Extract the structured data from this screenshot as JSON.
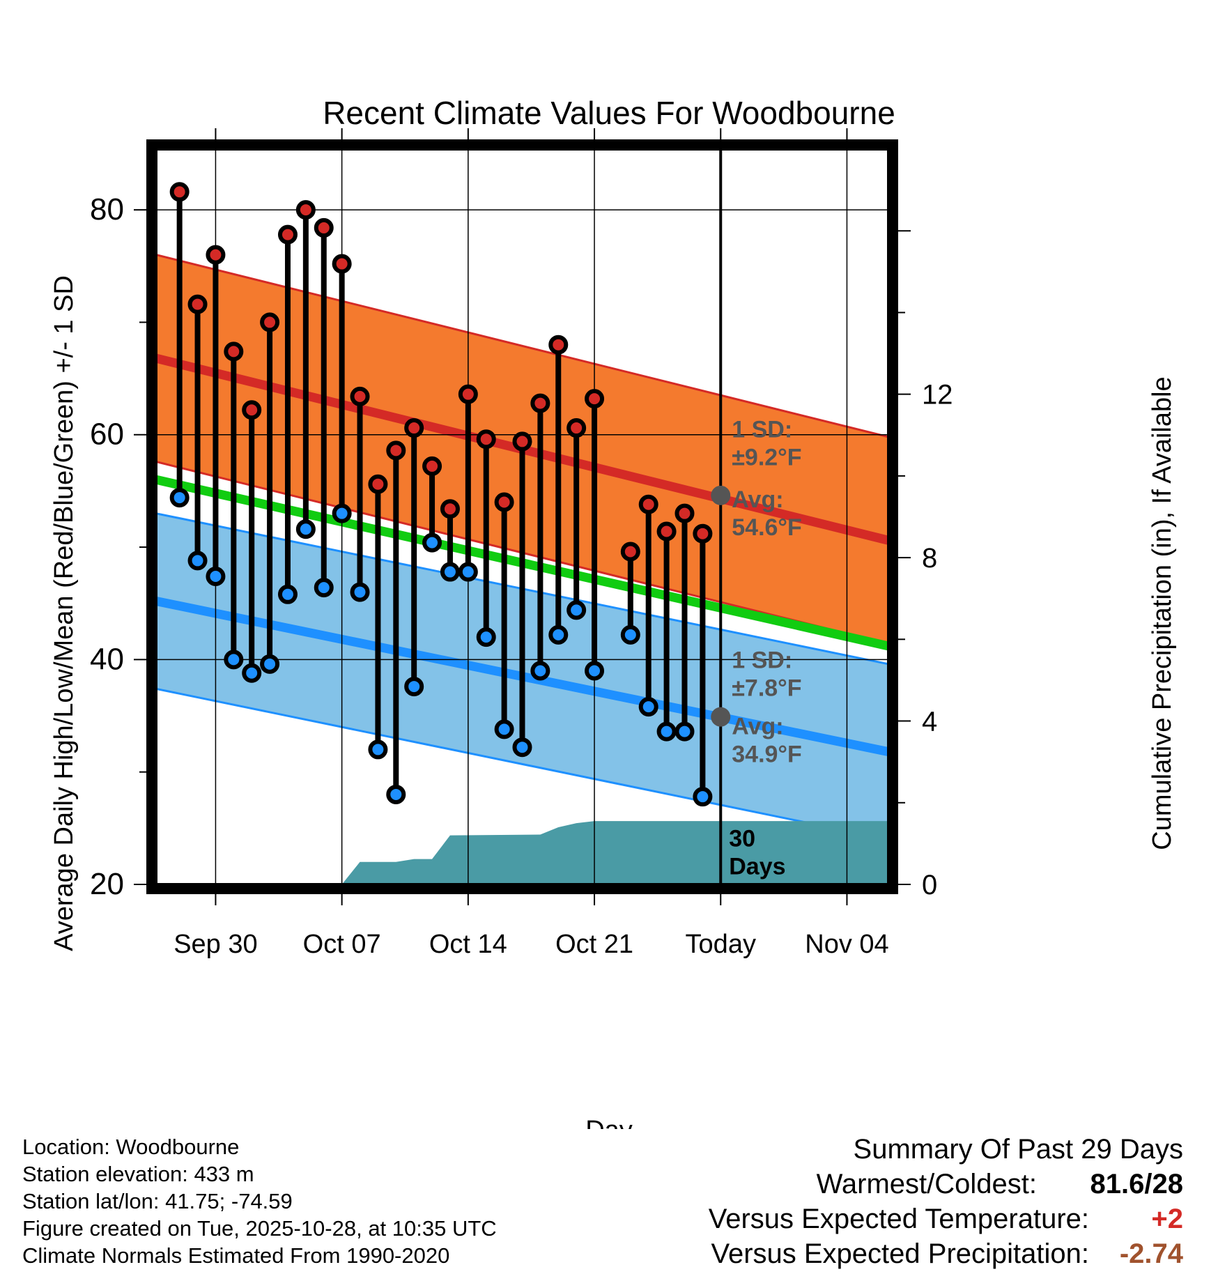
{
  "chart_data": {
    "type": "range_dot",
    "title": "Recent Climate Values For Woodbourne",
    "xlabel": "Day",
    "ylabel_left": "Average Daily High/Low/Mean (Red/Blue/Green) +/- 1 SD",
    "ylabel_right": "Cumulative Precipitation (in), If Available",
    "ylim_left": [
      20,
      85.4
    ],
    "ylim_right": [
      0,
      18.0
    ],
    "xlim_days": [
      -3.3,
      37.3
    ],
    "left_ticks": [
      "20",
      "40",
      "60",
      "80"
    ],
    "right_ticks": [
      "0",
      "4",
      "8",
      "12"
    ],
    "x_ticks": [
      {
        "day": 0,
        "label": "Sep 30"
      },
      {
        "day": 7,
        "label": "Oct 07"
      },
      {
        "day": 14,
        "label": "Oct 14"
      },
      {
        "day": 21,
        "label": "Oct 21"
      },
      {
        "day": 28,
        "label": "Today"
      },
      {
        "day": 35,
        "label": "Nov 04"
      }
    ],
    "daily_days": [
      -2,
      -1,
      0,
      1,
      2,
      3,
      4,
      5,
      6,
      7,
      8,
      9,
      10,
      11,
      12,
      13,
      14,
      15,
      16,
      17,
      18,
      19,
      20,
      21,
      23,
      24,
      25,
      26,
      27
    ],
    "daily_highs": [
      81.6,
      71.6,
      76.0,
      67.4,
      62.2,
      70.0,
      77.8,
      80.0,
      78.4,
      75.2,
      63.4,
      55.6,
      58.6,
      60.6,
      57.2,
      53.4,
      63.6,
      59.6,
      54.0,
      59.4,
      62.8,
      68.0,
      60.6,
      63.2,
      49.6,
      53.8,
      51.4,
      53.0,
      51.2
    ],
    "daily_lows": [
      54.4,
      48.8,
      47.4,
      40.0,
      38.8,
      39.6,
      45.8,
      51.6,
      46.4,
      53.0,
      46.0,
      32.0,
      28.0,
      37.6,
      50.4,
      47.8,
      47.8,
      42.0,
      33.8,
      32.2,
      39.0,
      42.2,
      44.4,
      39.0,
      42.2,
      35.8,
      33.6,
      33.6,
      27.8
    ],
    "normal_high": {
      "day_start": -3.3,
      "day_end": 37.3,
      "start": 66.8,
      "end": 50.6,
      "sd": 9.2
    },
    "normal_low": {
      "day_start": -3.3,
      "day_end": 37.3,
      "start": 45.2,
      "end": 31.8,
      "sd": 7.8
    },
    "normal_mean": {
      "day_start": -3.3,
      "day_end": 37.3,
      "start": 56.0,
      "end": 41.2
    },
    "precip_cumulative": [
      [
        7.0,
        0
      ],
      [
        8.0,
        0.55
      ],
      [
        10.0,
        0.55
      ],
      [
        11.0,
        0.62
      ],
      [
        12.0,
        0.62
      ],
      [
        13.0,
        1.2
      ],
      [
        18.0,
        1.22
      ],
      [
        19.0,
        1.4
      ],
      [
        20.0,
        1.5
      ],
      [
        21.0,
        1.55
      ],
      [
        22.0,
        1.55
      ],
      [
        37.3,
        1.55
      ]
    ],
    "today_day": 28,
    "high_sd_label": [
      "1 SD:",
      "±9.2°F"
    ],
    "high_avg_label": [
      "Avg:",
      "54.6°F"
    ],
    "low_sd_label": [
      "1 SD:",
      "±7.8°F"
    ],
    "low_avg_label": [
      "Avg:",
      "34.9°F"
    ],
    "high_avg_today": 54.6,
    "low_avg_today": 34.9,
    "precip_days_label": [
      "30",
      "Days"
    ],
    "colors": {
      "high_band": "#f47a2e",
      "high_line": "#d42a26",
      "low_band": "#83c2e8",
      "low_line": "#1e90ff",
      "mean_line": "#11cc11",
      "precip": "#4a9ba5",
      "high_dot": "#d42a26",
      "low_dot": "#1e90ff",
      "avg_dot": "#555555",
      "label_grey": "#555555"
    }
  },
  "info": {
    "location": "Location: Woodbourne",
    "elevation": "Station elevation: 433 m",
    "latlon": "Station lat/lon: 41.75; -74.59",
    "created": "Figure created on Tue, 2025-10-28, at 10:35 UTC",
    "normals": "Climate Normals Estimated From 1990-2020"
  },
  "summary": {
    "title": "Summary Of Past 29 Days",
    "warm_cold_label": "Warmest/Coldest:",
    "warm_cold_value": "81.6/28",
    "temp_label": "Versus Expected Temperature:",
    "temp_value": "+2",
    "temp_color": "#d42a26",
    "precip_label": "Versus Expected Precipitation:",
    "precip_value": "-2.74",
    "precip_color": "#a0522d"
  }
}
